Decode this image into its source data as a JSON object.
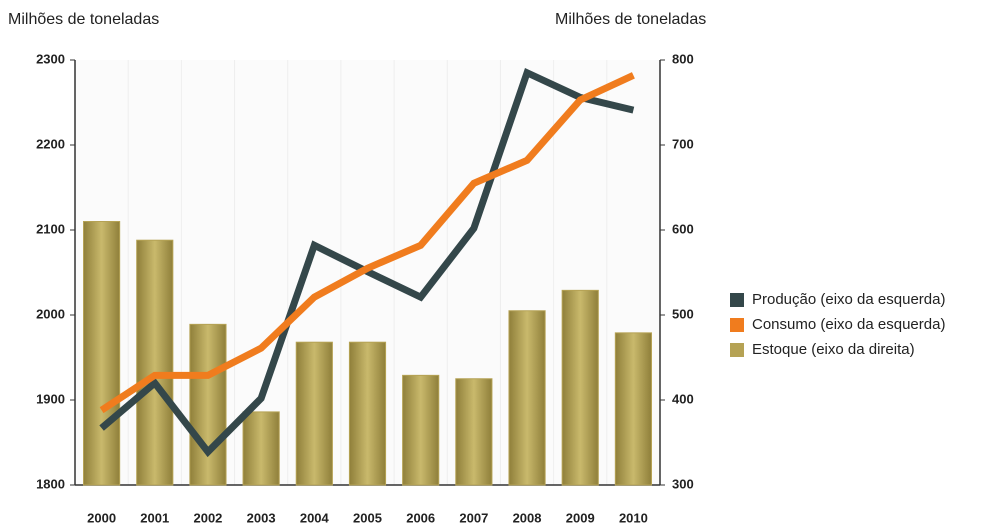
{
  "chart_data": {
    "type": "bar-line",
    "y_label": "Milhões de toneladas",
    "y2_label": "Milhões de toneladas",
    "categories": [
      "2000",
      "2001",
      "2002",
      "2003",
      "2004",
      "2005",
      "2006",
      "2007",
      "2008",
      "2009",
      "2010"
    ],
    "series": [
      {
        "name": "Produção (eixo da esquerda)",
        "color": "#34474a",
        "type": "line",
        "axis": "y",
        "values": [
          1867,
          1920,
          1839,
          1902,
          2082,
          2051,
          2021,
          2102,
          2285,
          2256,
          2241
        ]
      },
      {
        "name": "Consumo (eixo da esquerda)",
        "color": "#f07c1e",
        "type": "line",
        "axis": "y",
        "values": [
          1888,
          1929,
          1929,
          1961,
          2021,
          2055,
          2082,
          2155,
          2182,
          2253,
          2282
        ]
      },
      {
        "name": "Estoque (eixo da direita)",
        "color": "#b5a254",
        "type": "bar",
        "axis": "y2",
        "values": [
          610,
          588,
          489,
          386,
          468,
          468,
          429,
          425,
          505,
          529,
          479
        ]
      }
    ],
    "ylim": [
      1800,
      2300
    ],
    "yticks": [
      1800,
      1900,
      2000,
      2100,
      2200,
      2300
    ],
    "y2lim": [
      300,
      800
    ],
    "y2ticks": [
      300,
      400,
      500,
      600,
      700,
      800
    ],
    "legend": "right"
  }
}
